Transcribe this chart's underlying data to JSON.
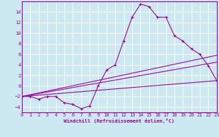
{
  "background_color": "#cce8f0",
  "grid_color": "#ffffff",
  "line_color": "#990099",
  "marker": "+",
  "xlabel": "Windchill (Refroidissement éolien,°C)",
  "ylim": [
    -5.0,
    16.0
  ],
  "xlim": [
    0,
    23
  ],
  "yticks": [
    -4,
    -2,
    0,
    2,
    4,
    6,
    8,
    10,
    12,
    14
  ],
  "xticks": [
    0,
    1,
    2,
    3,
    4,
    5,
    6,
    7,
    8,
    9,
    10,
    11,
    12,
    13,
    14,
    15,
    16,
    17,
    18,
    19,
    20,
    21,
    22,
    23
  ],
  "series": [
    {
      "x": [
        0,
        1,
        2,
        3,
        4,
        5,
        6,
        7,
        8,
        9,
        10,
        11,
        12,
        13,
        14,
        15,
        16,
        17,
        18,
        19,
        20,
        21,
        22,
        23
      ],
      "y": [
        -2,
        -2,
        -2.5,
        -2,
        -2,
        -3.2,
        -3.5,
        -4.3,
        -3.8,
        0.0,
        3.0,
        4.0,
        8.5,
        13.0,
        15.5,
        15.0,
        13.0,
        13.0,
        9.5,
        8.5,
        7.0,
        6.0,
        3.8,
        1.0
      ]
    },
    {
      "x": [
        0,
        23
      ],
      "y": [
        -2,
        1.0
      ]
    },
    {
      "x": [
        0,
        23
      ],
      "y": [
        -2,
        4.5
      ]
    },
    {
      "x": [
        0,
        23
      ],
      "y": [
        -2,
        5.8
      ]
    }
  ]
}
